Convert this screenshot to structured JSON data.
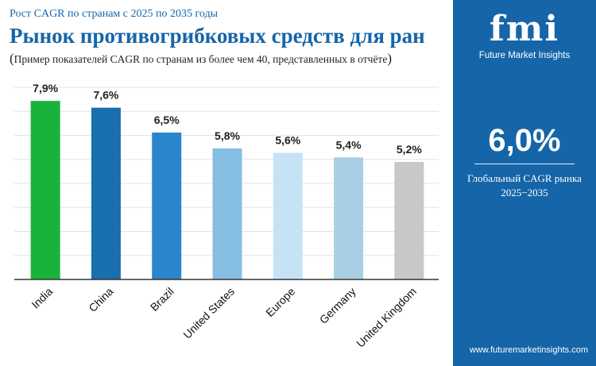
{
  "header": {
    "subtitle": "Рост CAGR по странам с 2025 по 2035 годы",
    "title": "Рынок противогрибковых средств для ран",
    "note_open": "(",
    "note": "Пример показателей CAGR по странам из более чем 40, представленных в отчёте",
    "note_close": ")"
  },
  "sidebar": {
    "logo_mark": "fmi",
    "logo_text": "Future Market Insights",
    "cagr_value": "6,0%",
    "cagr_label_line1": "Глобальный CAGR рынка",
    "cagr_label_line2": "2025−2035",
    "website": "www.futuremarketinsights.com",
    "bg_color": "#1565a8"
  },
  "chart_data": {
    "type": "bar",
    "categories": [
      "India",
      "China",
      "Brazil",
      "United States",
      "Europe",
      "Germany",
      "United Kingdom"
    ],
    "values": [
      7.9,
      7.6,
      6.5,
      5.8,
      5.6,
      5.4,
      5.2
    ],
    "labels": [
      "7,9%",
      "7,6%",
      "6,5%",
      "5,8%",
      "5,6%",
      "5,4%",
      "5,2%"
    ],
    "colors": [
      "#19b33c",
      "#1a6faf",
      "#2a86cc",
      "#85bde3",
      "#c6e3f5",
      "#a8cfe4",
      "#c8c8c8"
    ],
    "ylim": [
      0,
      8.5
    ],
    "grid": true
  }
}
